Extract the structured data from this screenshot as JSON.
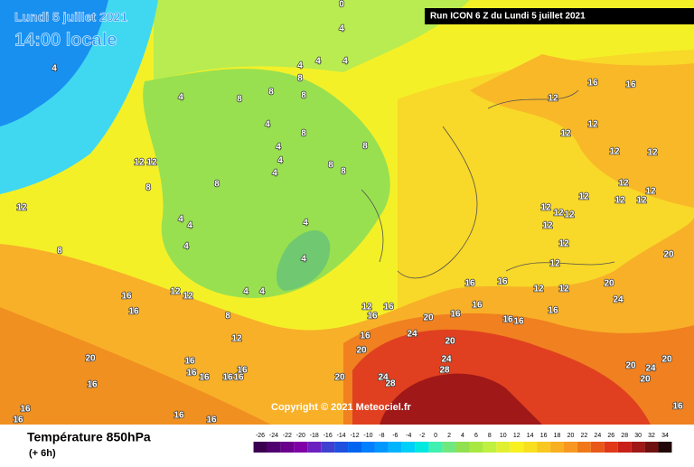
{
  "header": {
    "date": "Lundi 5 juillet 2021",
    "time": "14:00 locale",
    "run": "Run ICON 6 Z du Lundi 5 juillet 2021"
  },
  "copyright": "Copyright © 2021 Meteociel.fr",
  "legend": {
    "title": "Température 850hPa",
    "subtitle": "(+ 6h)",
    "labels": [
      -26,
      -24,
      -22,
      -20,
      -18,
      -16,
      -14,
      -12,
      -10,
      -8,
      -6,
      -4,
      -2,
      0,
      2,
      4,
      6,
      8,
      10,
      12,
      14,
      16,
      18,
      20,
      22,
      24,
      26,
      28,
      30,
      32,
      34
    ],
    "colors": [
      "#3c0050",
      "#50006e",
      "#6a008c",
      "#8000a8",
      "#6c20c0",
      "#4040d0",
      "#2050e0",
      "#0064f0",
      "#0080ff",
      "#0098ff",
      "#00b4ff",
      "#00d0f8",
      "#00e8e0",
      "#40f0b0",
      "#70e880",
      "#90e050",
      "#a8e840",
      "#c0f040",
      "#e0f030",
      "#f8f020",
      "#f8e020",
      "#f8c820",
      "#f8b020",
      "#f89820",
      "#f07818",
      "#e85818",
      "#e03818",
      "#c82018",
      "#a01818",
      "#701010",
      "#200808"
    ]
  },
  "contour_labels": [
    0,
    4,
    4,
    4,
    4,
    4,
    8,
    8,
    8,
    8,
    4,
    4,
    4,
    4,
    4,
    8,
    8,
    8,
    8,
    8,
    8,
    12,
    12,
    12,
    8,
    4,
    4,
    4,
    4,
    4,
    4,
    4,
    8,
    12,
    12,
    16,
    16,
    12,
    20,
    16,
    16,
    16,
    16,
    16,
    16,
    16,
    16,
    16,
    16,
    16,
    12,
    16,
    16,
    16,
    20,
    20,
    16,
    24,
    20,
    24,
    28,
    24,
    28,
    20,
    16,
    16,
    16,
    16,
    16,
    16,
    12,
    12,
    12,
    16,
    16,
    12,
    12,
    12,
    12,
    12,
    12,
    12,
    12,
    12,
    12,
    12,
    12,
    12,
    12,
    12,
    20,
    20,
    24,
    20,
    24,
    20,
    20,
    16
  ]
}
